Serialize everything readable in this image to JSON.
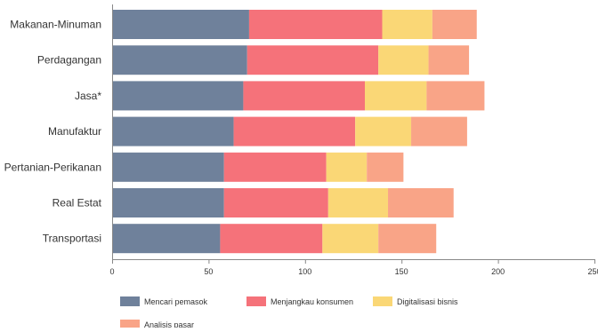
{
  "chart_data": {
    "type": "bar",
    "orientation": "horizontal",
    "stacked": true,
    "title": "",
    "xlabel": "",
    "ylabel": "",
    "categories": [
      "Makanan-Minuman",
      "Perdagangan",
      "Jasa*",
      "Manufaktur",
      "Pertanian-Perikanan",
      "Real Estat",
      "Transportasi"
    ],
    "series": [
      {
        "name": "Mencari pemasok",
        "color": "#6f819b",
        "values": [
          71,
          70,
          68,
          63,
          58,
          58,
          56
        ]
      },
      {
        "name": "Menjangkau konsumen",
        "color": "#f5727a",
        "values": [
          69,
          68,
          63,
          63,
          53,
          54,
          53
        ]
      },
      {
        "name": "Digitalisasi bisnis",
        "color": "#fad776",
        "values": [
          26,
          26,
          32,
          29,
          21,
          31,
          29
        ]
      },
      {
        "name": "Analisis pasar",
        "color": "#f9a487",
        "values": [
          23,
          21,
          30,
          29,
          19,
          34,
          30
        ]
      }
    ],
    "xlim": [
      0,
      250
    ],
    "xticks": [
      0,
      50,
      100,
      150,
      200,
      250
    ],
    "grid": false,
    "legend_position": "bottom"
  }
}
